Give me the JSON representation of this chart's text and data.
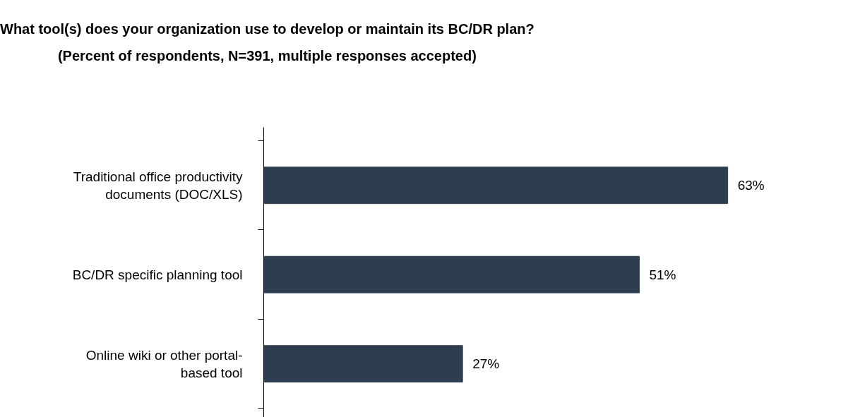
{
  "chart_data": {
    "type": "bar",
    "orientation": "horizontal",
    "title": "What tool(s) does your organization use to develop or maintain its BC/DR plan?",
    "subtitle": "(Percent of respondents, N=391, multiple responses accepted)",
    "categories": [
      "Traditional office productivity documents (DOC/XLS)",
      "BC/DR specific planning tool",
      "Online wiki or other portal-based tool"
    ],
    "values": [
      63,
      51,
      27
    ],
    "color": "#2e3e50",
    "value_labels": [
      "63%",
      "51%",
      "27%"
    ],
    "grid": false
  }
}
